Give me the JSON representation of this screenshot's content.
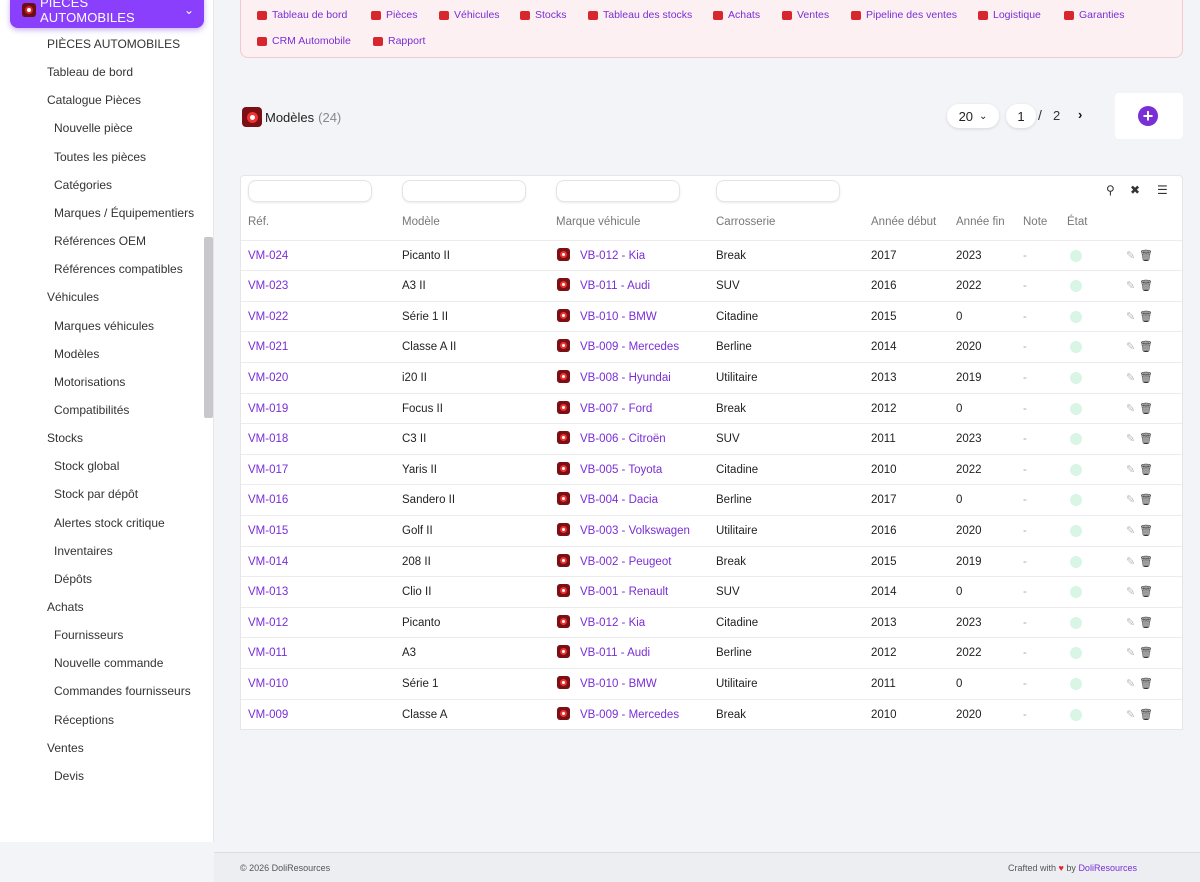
{
  "sidebar": {
    "module_title": "PIÈCES AUTOMOBILES",
    "items": [
      {
        "label": "PIÈCES AUTOMOBILES",
        "level": 0
      },
      {
        "label": "Tableau de bord",
        "level": 0
      },
      {
        "label": "Catalogue Pièces",
        "level": 0
      },
      {
        "label": "Nouvelle pièce",
        "level": 1
      },
      {
        "label": "Toutes les pièces",
        "level": 1
      },
      {
        "label": "Catégories",
        "level": 1
      },
      {
        "label": "Marques / Équipementiers",
        "level": 1
      },
      {
        "label": "Références OEM",
        "level": 1
      },
      {
        "label": "Références compatibles",
        "level": 1
      },
      {
        "label": "Véhicules",
        "level": 0
      },
      {
        "label": "Marques véhicules",
        "level": 1
      },
      {
        "label": "Modèles",
        "level": 1
      },
      {
        "label": "Motorisations",
        "level": 1
      },
      {
        "label": "Compatibilités",
        "level": 1
      },
      {
        "label": "Stocks",
        "level": 0
      },
      {
        "label": "Stock global",
        "level": 1
      },
      {
        "label": "Stock par dépôt",
        "level": 1
      },
      {
        "label": "Alertes stock critique",
        "level": 1
      },
      {
        "label": "Inventaires",
        "level": 1
      },
      {
        "label": "Dépôts",
        "level": 1
      },
      {
        "label": "Achats",
        "level": 0
      },
      {
        "label": "Fournisseurs",
        "level": 1
      },
      {
        "label": "Nouvelle commande",
        "level": 1
      },
      {
        "label": "Commandes fournisseurs",
        "level": 1
      },
      {
        "label": "Réceptions",
        "level": 1
      },
      {
        "label": "Ventes",
        "level": 0
      },
      {
        "label": "Devis",
        "level": 1
      }
    ]
  },
  "topmenu": [
    {
      "label": "Tableau de bord",
      "icon": "dashboard-icon"
    },
    {
      "label": "Pièces",
      "icon": "gear-icon"
    },
    {
      "label": "Véhicules",
      "icon": "car-icon"
    },
    {
      "label": "Stocks",
      "icon": "boxes-icon"
    },
    {
      "label": "Tableau des stocks",
      "icon": "grid-icon"
    },
    {
      "label": "Achats",
      "icon": "file-icon"
    },
    {
      "label": "Ventes",
      "icon": "cart-icon"
    },
    {
      "label": "Pipeline des ventes",
      "icon": "list-icon"
    },
    {
      "label": "Logistique",
      "icon": "truck-icon"
    },
    {
      "label": "Garanties",
      "icon": "shield-icon"
    },
    {
      "label": "CRM Automobile",
      "icon": "user-plus-icon"
    },
    {
      "label": "Rapport",
      "icon": "pie-icon"
    }
  ],
  "heading": {
    "title": "Modèles",
    "count": "(24)"
  },
  "pager": {
    "per_page": "20",
    "page": "1",
    "slash": "/",
    "total_pages": "2",
    "next": "›",
    "add": "+"
  },
  "table": {
    "headers": [
      "Réf.",
      "Modèle",
      "Marque véhicule",
      "Carrosserie",
      "Année début",
      "Année fin",
      "Note",
      "État"
    ],
    "rows": [
      {
        "ref": "VM-024",
        "model": "Picanto II",
        "brand": "VB-012 - Kia",
        "body": "Break",
        "start": "2017",
        "end": "2023",
        "note": "-"
      },
      {
        "ref": "VM-023",
        "model": "A3 II",
        "brand": "VB-011 - Audi",
        "body": "SUV",
        "start": "2016",
        "end": "2022",
        "note": "-"
      },
      {
        "ref": "VM-022",
        "model": "Série 1 II",
        "brand": "VB-010 - BMW",
        "body": "Citadine",
        "start": "2015",
        "end": "0",
        "note": "-"
      },
      {
        "ref": "VM-021",
        "model": "Classe A II",
        "brand": "VB-009 - Mercedes",
        "body": "Berline",
        "start": "2014",
        "end": "2020",
        "note": "-"
      },
      {
        "ref": "VM-020",
        "model": "i20 II",
        "brand": "VB-008 - Hyundai",
        "body": "Utilitaire",
        "start": "2013",
        "end": "2019",
        "note": "-"
      },
      {
        "ref": "VM-019",
        "model": "Focus II",
        "brand": "VB-007 - Ford",
        "body": "Break",
        "start": "2012",
        "end": "0",
        "note": "-"
      },
      {
        "ref": "VM-018",
        "model": "C3 II",
        "brand": "VB-006 - Citroën",
        "body": "SUV",
        "start": "2011",
        "end": "2023",
        "note": "-"
      },
      {
        "ref": "VM-017",
        "model": "Yaris II",
        "brand": "VB-005 - Toyota",
        "body": "Citadine",
        "start": "2010",
        "end": "2022",
        "note": "-"
      },
      {
        "ref": "VM-016",
        "model": "Sandero II",
        "brand": "VB-004 - Dacia",
        "body": "Berline",
        "start": "2017",
        "end": "0",
        "note": "-"
      },
      {
        "ref": "VM-015",
        "model": "Golf II",
        "brand": "VB-003 - Volkswagen",
        "body": "Utilitaire",
        "start": "2016",
        "end": "2020",
        "note": "-"
      },
      {
        "ref": "VM-014",
        "model": "208 II",
        "brand": "VB-002 - Peugeot",
        "body": "Break",
        "start": "2015",
        "end": "2019",
        "note": "-"
      },
      {
        "ref": "VM-013",
        "model": "Clio II",
        "brand": "VB-001 - Renault",
        "body": "SUV",
        "start": "2014",
        "end": "0",
        "note": "-"
      },
      {
        "ref": "VM-012",
        "model": "Picanto",
        "brand": "VB-012 - Kia",
        "body": "Citadine",
        "start": "2013",
        "end": "2023",
        "note": "-"
      },
      {
        "ref": "VM-011",
        "model": "A3",
        "brand": "VB-011 - Audi",
        "body": "Berline",
        "start": "2012",
        "end": "2022",
        "note": "-"
      },
      {
        "ref": "VM-010",
        "model": "Série 1",
        "brand": "VB-010 - BMW",
        "body": "Utilitaire",
        "start": "2011",
        "end": "0",
        "note": "-"
      },
      {
        "ref": "VM-009",
        "model": "Classe A",
        "brand": "VB-009 - Mercedes",
        "body": "Break",
        "start": "2010",
        "end": "2020",
        "note": "-"
      }
    ]
  },
  "footer": {
    "copyright": "© 2026 DoliResources",
    "crafted": "Crafted with",
    "heart": "♥",
    "by": "by",
    "brand": "DoliResources"
  },
  "colors": {
    "accent": "#8a3ffc",
    "link": "#7a2ed6",
    "menu_bg": "#fdf0f2",
    "status": "#d9f5e6",
    "icon_red": "#d8262e"
  }
}
